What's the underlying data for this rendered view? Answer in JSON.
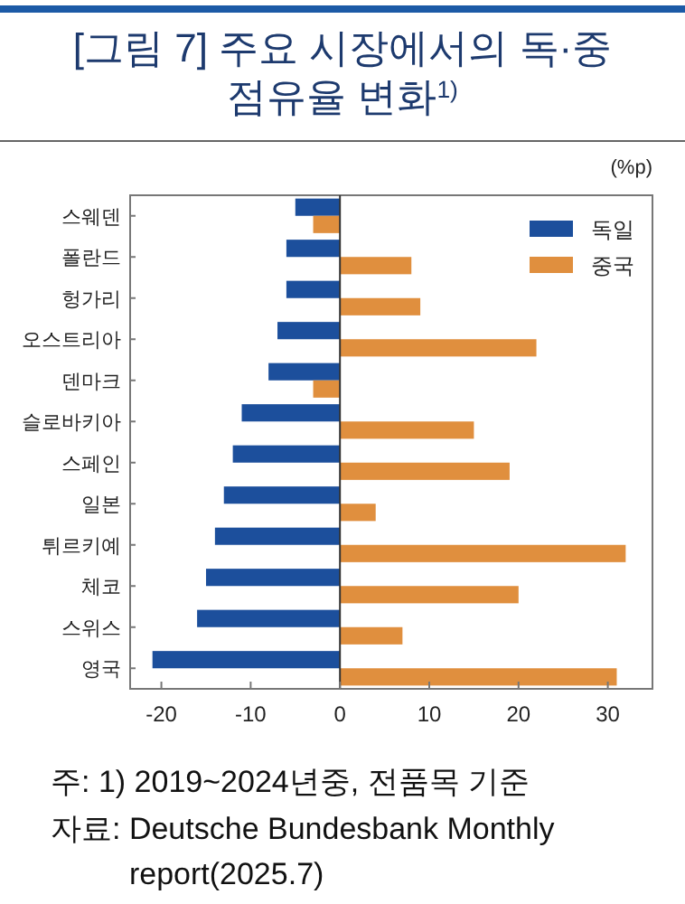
{
  "chart_data": {
    "type": "bar",
    "orientation": "horizontal",
    "title": "[그림 7] 주요 시장에서의 독·중\n점유율 변화$^{1)}$",
    "xlabel": "(%p)",
    "categories": [
      "스웨덴",
      "폴란드",
      "헝가리",
      "오스트리아",
      "덴마크",
      "슬로바키아",
      "스페인",
      "일본",
      "튀르키예",
      "체코",
      "스위스",
      "영국"
    ],
    "series": [
      {
        "name": "독일",
        "color": "#1c4f9c",
        "values": [
          -5,
          -6,
          -6,
          -7,
          -8,
          -11,
          -12,
          -13,
          -14,
          -15,
          -16,
          -21
        ]
      },
      {
        "name": "중국",
        "color": "#e08f3e",
        "values": [
          -3,
          8,
          9,
          22,
          -3,
          15,
          19,
          4,
          32,
          20,
          7,
          31
        ]
      }
    ],
    "xlim": [
      -23.5,
      35
    ],
    "xticks": [
      -20,
      -10,
      0,
      10,
      20,
      30
    ],
    "legend": "top right",
    "annotations": [
      "주: 1) 2019~2024년중, 전품목 기준",
      "자료: Deutsche Bundesbank Monthly report(2025.7)"
    ]
  }
}
